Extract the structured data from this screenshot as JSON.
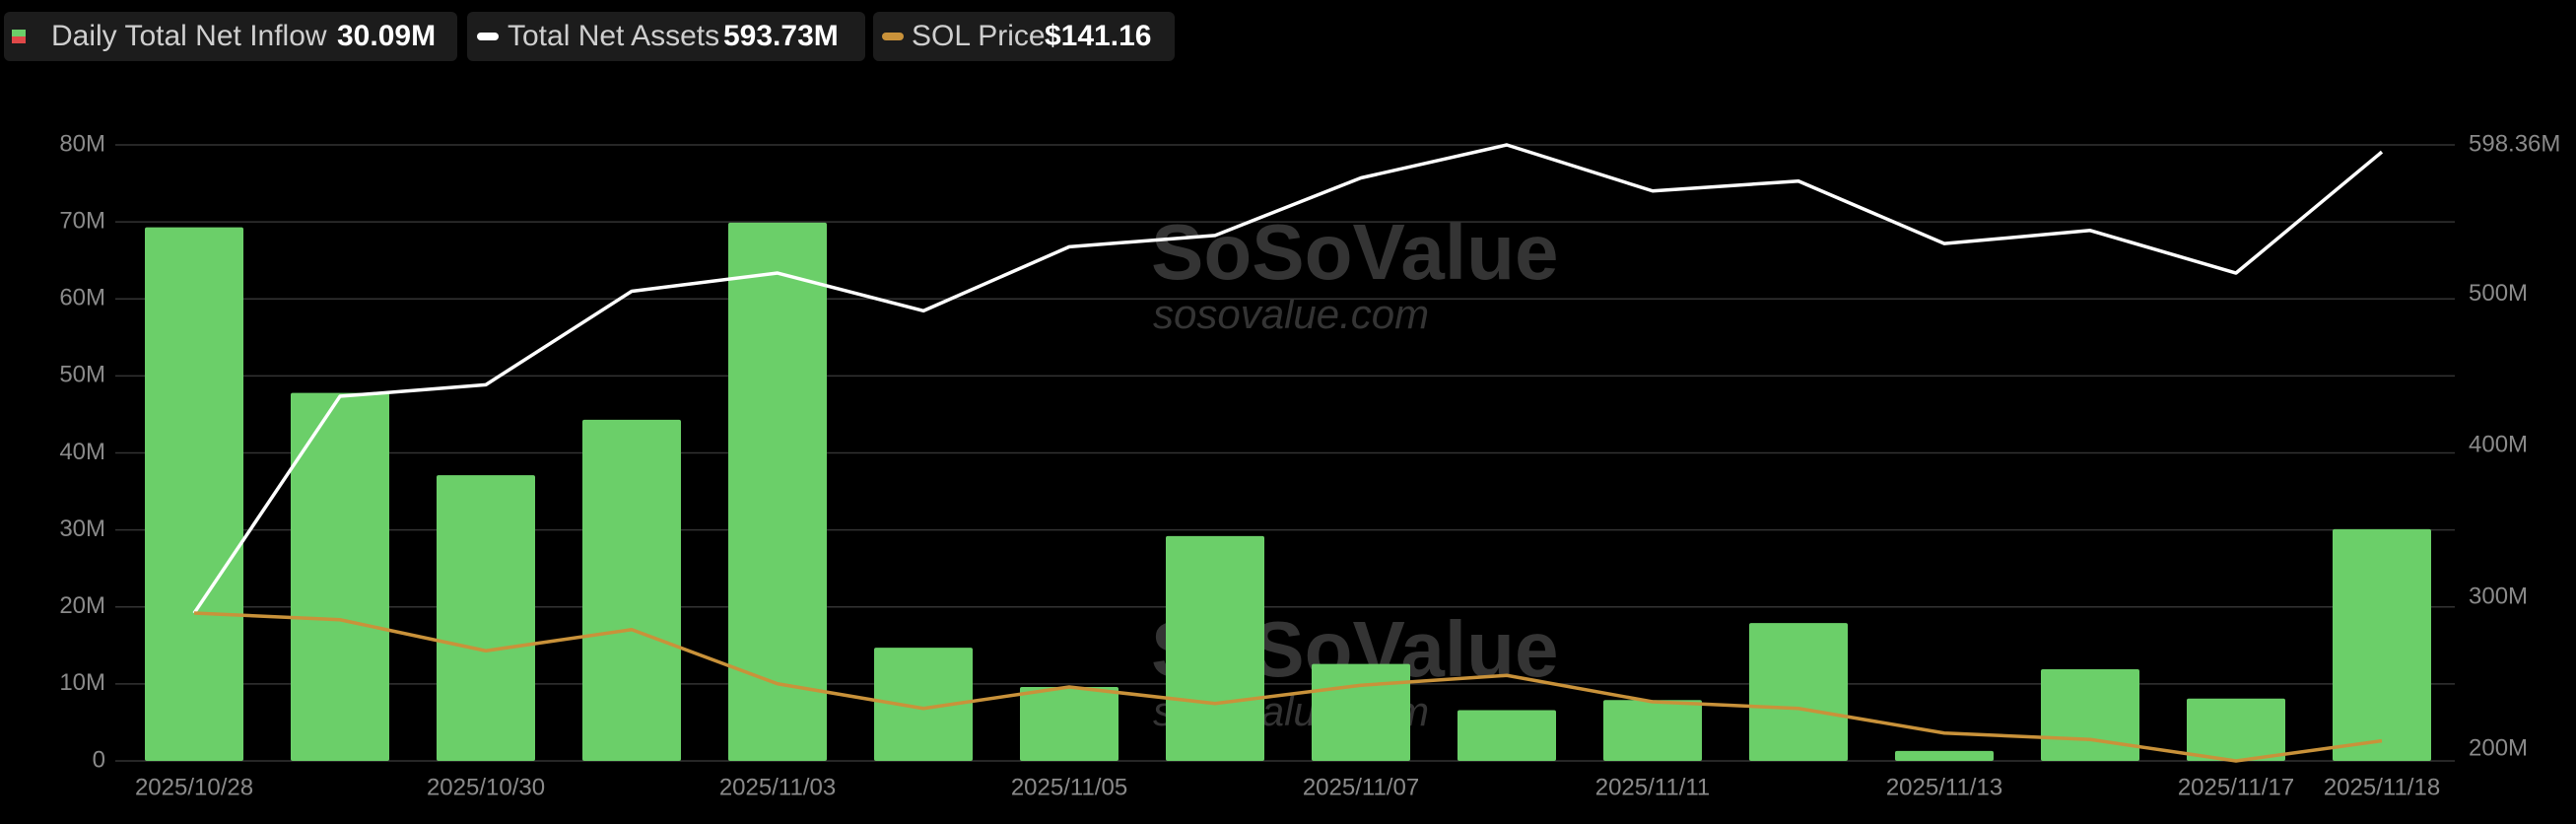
{
  "chart_data": {
    "type": "bar",
    "legend": [
      {
        "label": "Daily Total Net Inflow",
        "value": "30.09M"
      },
      {
        "label": "Total Net Assets",
        "value": "593.73M"
      },
      {
        "label": "SOL Price",
        "value": "$141.16"
      }
    ],
    "watermark": {
      "name": "SoSoValue",
      "url": "sosovalue.com"
    },
    "categories": [
      "2025/10/28",
      null,
      "2025/10/30",
      null,
      "2025/11/03",
      null,
      "2025/11/05",
      null,
      "2025/11/07",
      null,
      "2025/11/11",
      null,
      "2025/11/13",
      null,
      "2025/11/17",
      "2025/11/18"
    ],
    "ylim": [
      0,
      80
    ],
    "yticks": [
      0,
      {
        "value": 10,
        "label": "10M"
      },
      {
        "value": 20,
        "label": "20M"
      },
      {
        "value": 30,
        "label": "30M"
      },
      {
        "value": 40,
        "label": "40M"
      },
      {
        "value": 50,
        "label": "50M"
      },
      {
        "value": 60,
        "label": "60M"
      },
      {
        "value": 70,
        "label": "70M"
      },
      {
        "value": 80,
        "label": "80M"
      }
    ],
    "y2lim": [
      192.4,
      598.36
    ],
    "y2ticks": [
      {
        "value": 200,
        "label": "200M"
      },
      {
        "value": 300,
        "label": "300M"
      },
      {
        "value": 400,
        "label": "400M"
      },
      {
        "value": 500,
        "label": "500M"
      },
      {
        "value": 598.36,
        "label": "598.36M"
      }
    ],
    "y3lim": [
      133,
      383
    ],
    "grid": true,
    "series": [
      {
        "name": "Daily Total Net Inflow",
        "type": "bar",
        "color": "#6bcf69",
        "values": [
          69.3,
          47.8,
          37.1,
          44.3,
          69.9,
          14.7,
          9.6,
          29.2,
          12.6,
          6.6,
          7.9,
          17.9,
          1.3,
          11.9,
          8.1,
          30.09
        ]
      },
      {
        "name": "Total Net Assets",
        "type": "line",
        "axis": "y2",
        "color": "#ffffff",
        "values": [
          289.8,
          432.7,
          440.3,
          501.9,
          513.9,
          489,
          531.2,
          538.7,
          576.6,
          598.36,
          568,
          574.5,
          533.3,
          542,
          513.9,
          593.73
        ]
      },
      {
        "name": "SOL Price",
        "type": "line",
        "axis": "y3",
        "color": "#c9923a",
        "values": [
          193,
          190.3,
          177.7,
          186.3,
          164.3,
          154.3,
          163,
          156.3,
          163.7,
          167.7,
          157,
          154.3,
          144.3,
          141.7,
          133,
          141.16
        ]
      }
    ]
  }
}
